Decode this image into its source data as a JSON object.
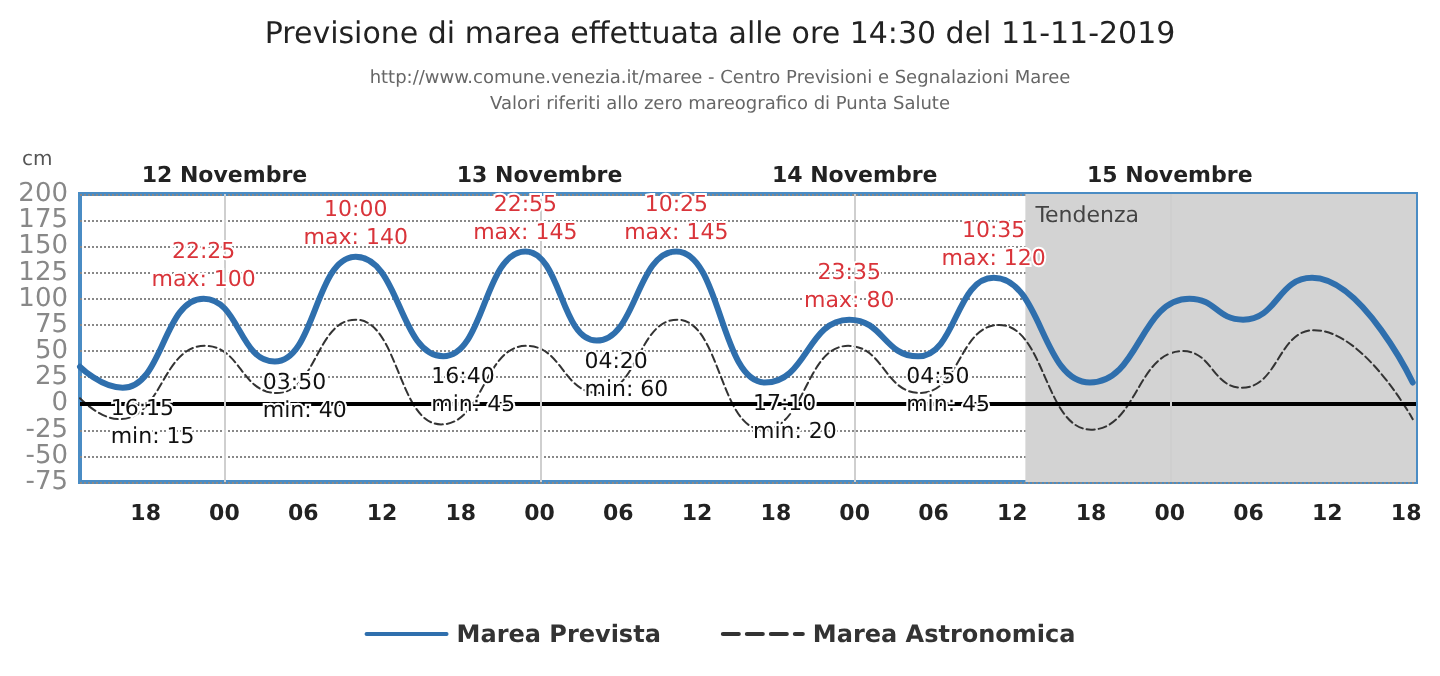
{
  "chart_data": {
    "type": "line",
    "title": "Previsione di marea effettuata alle ore 14:30 del 11-11-2019",
    "subtitle": "http://www.comune.venezia.it/maree - Centro Previsioni e Segnalazioni Maree\nValori riferiti allo zero mareografico di Punta Salute",
    "ylabel": "cm",
    "xlim": [
      "2019-11-11T13:00",
      "2019-11-15T18:45"
    ],
    "xticks": [
      {
        "value": "2019-11-11T18:00",
        "label": "18"
      },
      {
        "value": "2019-11-12T00:00",
        "label": "00"
      },
      {
        "value": "2019-11-12T06:00",
        "label": "06"
      },
      {
        "value": "2019-11-12T12:00",
        "label": "12"
      },
      {
        "value": "2019-11-12T18:00",
        "label": "18"
      },
      {
        "value": "2019-11-13T00:00",
        "label": "00"
      },
      {
        "value": "2019-11-13T06:00",
        "label": "06"
      },
      {
        "value": "2019-11-13T12:00",
        "label": "12"
      },
      {
        "value": "2019-11-13T18:00",
        "label": "18"
      },
      {
        "value": "2019-11-14T00:00",
        "label": "00"
      },
      {
        "value": "2019-11-14T06:00",
        "label": "06"
      },
      {
        "value": "2019-11-14T12:00",
        "label": "12"
      },
      {
        "value": "2019-11-14T18:00",
        "label": "18"
      },
      {
        "value": "2019-11-15T00:00",
        "label": "00"
      },
      {
        "value": "2019-11-15T06:00",
        "label": "06"
      },
      {
        "value": "2019-11-15T12:00",
        "label": "12"
      },
      {
        "value": "2019-11-15T18:00",
        "label": "18"
      }
    ],
    "ylim": [
      -75,
      200
    ],
    "yticks": [
      -75,
      -50,
      -25,
      0,
      25,
      50,
      75,
      100,
      125,
      150,
      175,
      200
    ],
    "grid": "y",
    "legend": "bottom",
    "marker": "none",
    "series": [
      {
        "name": "Marea Prevista",
        "color": "#2f6fad",
        "line_style": "solid",
        "x": [
          "2019-11-11T13:00",
          "2019-11-11T16:15",
          "2019-11-11T22:25",
          "2019-11-12T03:50",
          "2019-11-12T10:00",
          "2019-11-12T16:40",
          "2019-11-12T22:55",
          "2019-11-13T04:20",
          "2019-11-13T10:25",
          "2019-11-13T17:10",
          "2019-11-13T23:35",
          "2019-11-14T04:50",
          "2019-11-14T10:35",
          "2019-11-14T17:55",
          "2019-11-15T01:30",
          "2019-11-15T05:35",
          "2019-11-15T10:50",
          "2019-11-15T18:30"
        ],
        "values": [
          35,
          15,
          100,
          40,
          140,
          45,
          145,
          60,
          145,
          20,
          80,
          45,
          120,
          20,
          100,
          80,
          120,
          20
        ]
      },
      {
        "name": "Marea Astronomica",
        "color": "#333333",
        "line_style": "dashed",
        "x": [
          "2019-11-11T13:00",
          "2019-11-11T16:00",
          "2019-11-11T22:30",
          "2019-11-12T04:00",
          "2019-11-12T10:00",
          "2019-11-12T16:30",
          "2019-11-12T23:00",
          "2019-11-13T04:30",
          "2019-11-13T10:30",
          "2019-11-13T17:00",
          "2019-11-13T23:30",
          "2019-11-14T05:00",
          "2019-11-14T11:00",
          "2019-11-14T18:00",
          "2019-11-15T01:00",
          "2019-11-15T05:30",
          "2019-11-15T11:00",
          "2019-11-15T18:30"
        ],
        "values": [
          5,
          -15,
          55,
          10,
          80,
          -20,
          55,
          10,
          80,
          -25,
          55,
          10,
          75,
          -25,
          50,
          15,
          70,
          -15
        ]
      }
    ],
    "ref_lines": [
      {
        "axis": "y",
        "value": 0,
        "color": "#000000"
      },
      {
        "axis": "x",
        "value": "2019-11-12T00:00",
        "label": "12 Novembre",
        "color": "#cfcfcf"
      },
      {
        "axis": "x",
        "value": "2019-11-13T00:00",
        "label": "13 Novembre",
        "color": "#cfcfcf"
      },
      {
        "axis": "x",
        "value": "2019-11-14T00:00",
        "label": "14 Novembre",
        "color": "#cfcfcf"
      },
      {
        "axis": "x",
        "value": "2019-11-15T00:00",
        "label": "15 Novembre",
        "color": "#cfcfcf"
      }
    ],
    "bands": [
      {
        "axis": "x",
        "from": "2019-11-14T13:00",
        "to": "2019-11-15T18:45",
        "label": "Tendenza",
        "color": "#d3d3d3"
      }
    ],
    "annotations": [
      {
        "text": "16:15\nmin: 15",
        "x": "2019-11-11T16:15",
        "y": 15
      },
      {
        "text": "22:25\nmax: 100",
        "x": "2019-11-11T22:25",
        "y": 100
      },
      {
        "text": "03:50\nmin: 40",
        "x": "2019-11-12T03:50",
        "y": 40
      },
      {
        "text": "10:00\nmax: 140",
        "x": "2019-11-12T10:00",
        "y": 140
      },
      {
        "text": "16:40\nmin: 45",
        "x": "2019-11-12T16:40",
        "y": 45
      },
      {
        "text": "22:55\nmax: 145",
        "x": "2019-11-12T22:55",
        "y": 145
      },
      {
        "text": "04:20\nmin: 60",
        "x": "2019-11-13T04:20",
        "y": 60
      },
      {
        "text": "10:25\nmax: 145",
        "x": "2019-11-13T10:25",
        "y": 145
      },
      {
        "text": "17:10\nmin: 20",
        "x": "2019-11-13T17:10",
        "y": 20
      },
      {
        "text": "23:35\nmax: 80",
        "x": "2019-11-13T23:35",
        "y": 80
      },
      {
        "text": "04:50\nmin: 45",
        "x": "2019-11-14T04:50",
        "y": 45
      },
      {
        "text": "10:35\nmax: 120",
        "x": "2019-11-14T10:35",
        "y": 120
      }
    ]
  }
}
